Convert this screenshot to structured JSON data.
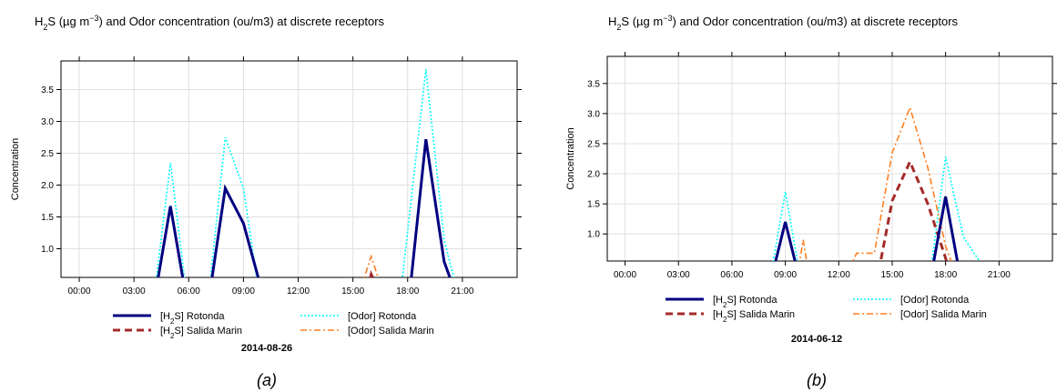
{
  "figure": {
    "panel_captions": [
      "(a)",
      "(b)"
    ]
  },
  "colors": {
    "h2s_rotonda": "#000080",
    "h2s_salida": "#a52a2a",
    "odor_rotonda": "#00ffff",
    "odor_salida": "#ff7f24",
    "grid": "#e0e0e0",
    "axis": "#000000"
  },
  "chart_data": [
    {
      "type": "line",
      "title_html": "H<tspan baseline-shift=\"sub\" font-size=\"9\">2</tspan>S (µg m<tspan baseline-shift=\"super\" font-size=\"9\">−3</tspan>) and Odor concentration (ou/m3) at discrete receptors",
      "ylabel": "Concentration",
      "date_label": "2014-08-26",
      "caption": "(a)",
      "xlim": [
        -1,
        24
      ],
      "ylim": [
        0.55,
        3.95
      ],
      "x_ticks": [
        0,
        3,
        6,
        9,
        12,
        15,
        18,
        21
      ],
      "x_tick_labels": [
        "00:00",
        "03:00",
        "06:00",
        "09:00",
        "12:00",
        "15:00",
        "18:00",
        "21:00"
      ],
      "y_ticks": [
        1.0,
        1.5,
        2.0,
        2.5,
        3.0,
        3.5
      ],
      "y_tick_labels": [
        "1.0",
        "1.5",
        "2.0",
        "2.5",
        "3.0",
        "3.5"
      ],
      "legend": {
        "placement": "bottom",
        "entries": [
          {
            "key": "h2s_rotonda",
            "label": "[H2S] Rotonda"
          },
          {
            "key": "odor_rotonda",
            "label": "[Odor] Rotonda"
          },
          {
            "key": "h2s_salida",
            "label": "[H2S] Salida Marin"
          },
          {
            "key": "odor_salida",
            "label": "[Odor] Salida Marin"
          }
        ]
      },
      "series": [
        {
          "key": "odor_rotonda",
          "name": "[Odor] Rotonda",
          "x": [
            4,
            5,
            6,
            7,
            8,
            9,
            10,
            17.5,
            19,
            20,
            21
          ],
          "y": [
            0.0,
            2.35,
            0.0,
            0.0,
            2.75,
            1.95,
            0.0,
            0.0,
            3.82,
            1.15,
            0.0
          ]
        },
        {
          "key": "odor_salida",
          "name": "[Odor] Salida Marin",
          "x": [
            15,
            16,
            17
          ],
          "y": [
            0.0,
            0.88,
            0.0
          ]
        },
        {
          "key": "h2s_salida",
          "name": "[H2S] Salida Marin",
          "x": [
            15.5,
            16,
            17
          ],
          "y": [
            0.0,
            0.6,
            0.0
          ]
        },
        {
          "key": "h2s_rotonda",
          "name": "[H2S] Rotonda",
          "x": [
            4,
            5,
            6,
            7,
            8,
            9,
            10,
            18,
            19,
            20,
            21
          ],
          "y": [
            0.0,
            1.67,
            0.0,
            0.0,
            1.95,
            1.4,
            0.35,
            0.0,
            2.72,
            0.8,
            0.0
          ]
        }
      ]
    },
    {
      "type": "line",
      "title_html": "H<tspan baseline-shift=\"sub\" font-size=\"9\">2</tspan>S (µg m<tspan baseline-shift=\"super\" font-size=\"9\">−3</tspan>) and Odor concentration (ou/m3) at discrete receptors",
      "ylabel": "Concentration",
      "date_label": "2014-06-12",
      "caption": "(b)",
      "xlim": [
        -1,
        24
      ],
      "ylim": [
        0.55,
        3.95
      ],
      "x_ticks": [
        0,
        3,
        6,
        9,
        12,
        15,
        18,
        21
      ],
      "x_tick_labels": [
        "00:00",
        "03:00",
        "06:00",
        "09:00",
        "12:00",
        "15:00",
        "18:00",
        "21:00"
      ],
      "y_ticks": [
        1.0,
        1.5,
        2.0,
        2.5,
        3.0,
        3.5
      ],
      "y_tick_labels": [
        "1.0",
        "1.5",
        "2.0",
        "2.5",
        "3.0",
        "3.5"
      ],
      "legend": {
        "placement": "bottom",
        "entries": [
          {
            "key": "h2s_rotonda",
            "label": "[H2S] Rotonda"
          },
          {
            "key": "odor_rotonda",
            "label": "[Odor] Rotonda"
          },
          {
            "key": "h2s_salida",
            "label": "[H2S] Salida Marin"
          },
          {
            "key": "odor_salida",
            "label": "[Odor] Salida Marin"
          }
        ]
      },
      "series": [
        {
          "key": "odor_rotonda",
          "name": "[Odor] Rotonda",
          "x": [
            8,
            9,
            10,
            17,
            18,
            19,
            20
          ],
          "y": [
            0.0,
            1.7,
            0.0,
            0.0,
            2.28,
            0.95,
            0.5
          ]
        },
        {
          "key": "odor_salida",
          "name": "[Odor] Salida Marin",
          "x": [
            9.5,
            10,
            10.5,
            12,
            13,
            14,
            15,
            16,
            17,
            18,
            19
          ],
          "y": [
            0.0,
            0.9,
            0.0,
            0.0,
            0.68,
            0.68,
            2.35,
            3.1,
            2.1,
            0.8,
            0.0
          ]
        },
        {
          "key": "h2s_salida",
          "name": "[H2S] Salida Marin",
          "x": [
            14,
            15,
            16,
            17,
            18,
            18.5
          ],
          "y": [
            0.0,
            1.55,
            2.2,
            1.5,
            0.6,
            0.0
          ]
        },
        {
          "key": "h2s_rotonda",
          "name": "[H2S] Rotonda",
          "x": [
            8,
            9,
            10,
            17,
            18,
            19
          ],
          "y": [
            0.0,
            1.2,
            0.0,
            0.0,
            1.62,
            0.0
          ]
        }
      ]
    }
  ]
}
